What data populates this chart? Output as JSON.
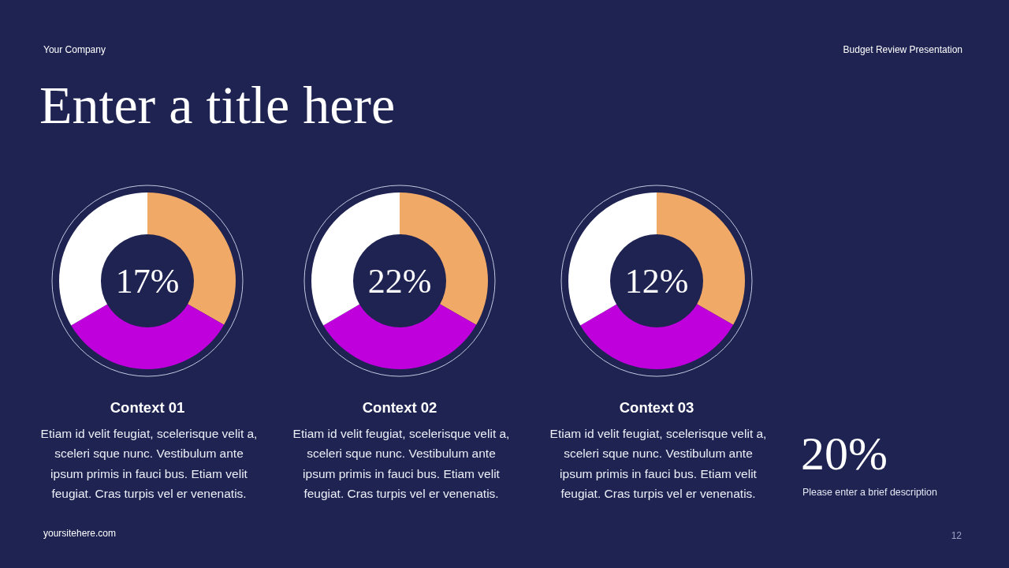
{
  "chart_data": [
    {
      "type": "other",
      "title": "Enter a title here",
      "annotations": [
        "Your Company",
        "Budget Review Presentation",
        "yoursitehere.com",
        "12"
      ]
    },
    {
      "type": "donut",
      "title": "Context 01",
      "categories": [
        null,
        null,
        null
      ],
      "values": [
        33.3,
        33.3,
        33.4
      ],
      "colors": [
        "#f0a966",
        "#bf00dc",
        "#ffffff"
      ],
      "annotations": [
        "17%",
        "Etiam id velit feugiat, scelerisque velit a,\nsceleri sque nunc. Vestibulum ante\nipsum primis in fauci bus. Etiam velit\nfeugiat. Cras turpis vel er venenatis."
      ]
    },
    {
      "type": "donut",
      "title": "Context 02",
      "categories": [
        null,
        null,
        null
      ],
      "values": [
        33.3,
        33.3,
        33.4
      ],
      "colors": [
        "#f0a966",
        "#bf00dc",
        "#ffffff"
      ],
      "annotations": [
        "22%",
        "Etiam id velit feugiat, scelerisque velit a,\nsceleri sque nunc. Vestibulum ante\nipsum primis in fauci bus. Etiam velit\nfeugiat. Cras turpis vel er venenatis."
      ]
    },
    {
      "type": "donut",
      "title": "Context 03",
      "categories": [
        null,
        null,
        null
      ],
      "values": [
        33.3,
        33.3,
        33.4
      ],
      "colors": [
        "#f0a966",
        "#bf00dc",
        "#ffffff"
      ],
      "annotations": [
        "12%",
        "Etiam id velit feugiat, scelerisque velit a,\nsceleri sque nunc. Vestibulum ante\nipsum primis in fauci bus. Etiam velit\nfeugiat. Cras turpis vel er venenatis."
      ]
    },
    {
      "type": "other",
      "annotations": [
        "20%",
        "Please enter a brief description"
      ]
    }
  ]
}
